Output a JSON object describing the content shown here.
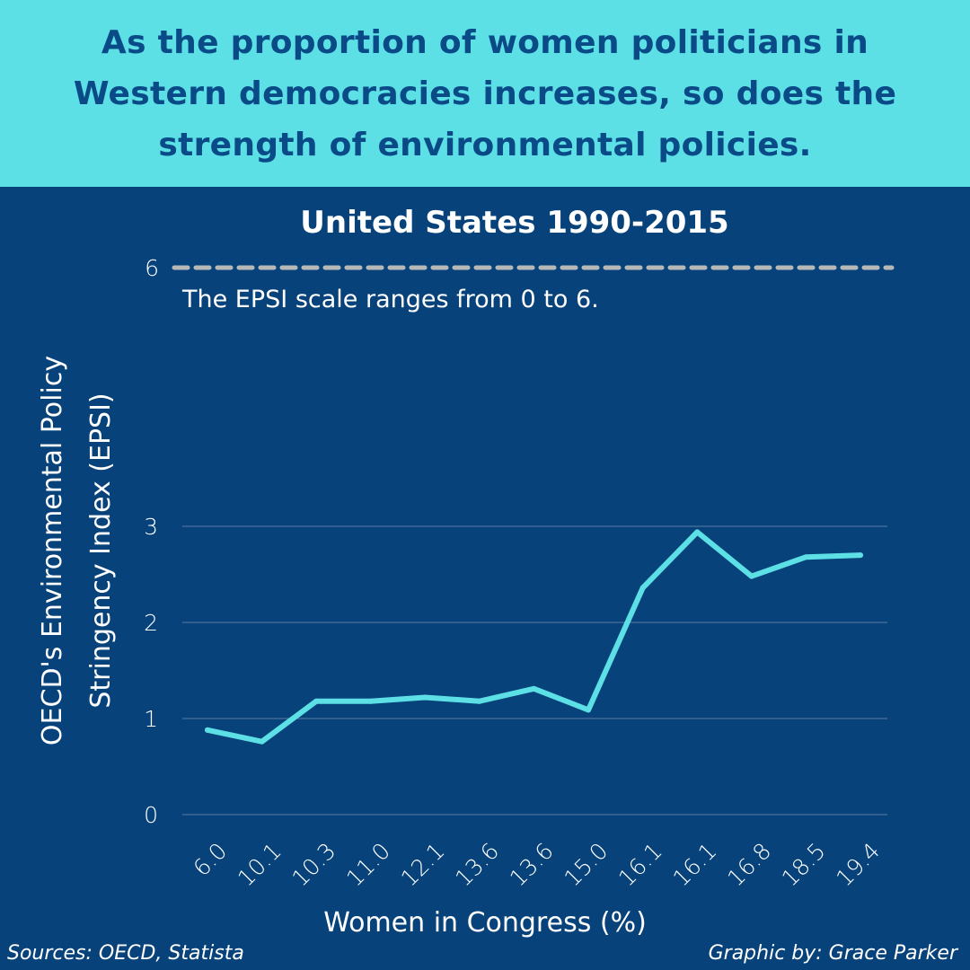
{
  "headline": "As the proportion of women politicians in Western democracies increases, so does the strength of environmental policies.",
  "colors": {
    "banner": "#5ce0e6",
    "background": "#07427a",
    "line": "#5ce0e6",
    "reference": "#b8b8b8",
    "headline_text": "#0a4a87"
  },
  "chart_data": {
    "type": "line",
    "title": "United States 1990-2015",
    "xlabel": "Women in Congress (%)",
    "ylabel": [
      "OECD's Environmental Policy",
      "Stringency Index (EPSI)"
    ],
    "categories": [
      "6.0",
      "10.1",
      "10.3",
      "11.0",
      "12.1",
      "13.6",
      "13.6",
      "15.0",
      "16.1",
      "16.1",
      "16.8",
      "18.5",
      "19.4"
    ],
    "values": [
      0.88,
      0.76,
      1.18,
      1.18,
      1.22,
      1.18,
      1.31,
      1.09,
      2.36,
      2.94,
      2.48,
      2.68,
      2.7
    ],
    "yticks": [
      "0",
      "1",
      "2",
      "3"
    ],
    "ylim": [
      0,
      3
    ],
    "grid": true,
    "reference_line": {
      "value": 6,
      "label": "6",
      "note": "The EPSI scale ranges from 0 to 6."
    }
  },
  "footer": {
    "sources": "Sources: OECD, Statista",
    "credit": "Graphic by: Grace Parker"
  }
}
